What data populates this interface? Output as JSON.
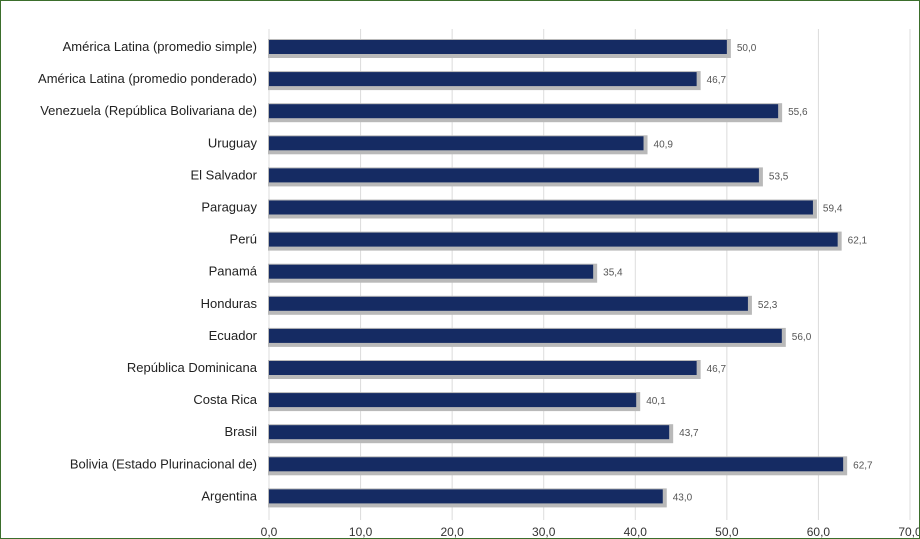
{
  "chart_data": {
    "type": "bar",
    "orientation": "horizontal",
    "categories": [
      "América Latina (promedio simple)",
      "América Latina (promedio ponderado)",
      "Venezuela (República Bolivariana de)",
      "Uruguay",
      "El Salvador",
      "Paraguay",
      "Perú",
      "Panamá",
      "Honduras",
      "Ecuador",
      "República Dominicana",
      "Costa Rica",
      "Brasil",
      "Bolivia (Estado Plurinacional de)",
      "Argentina"
    ],
    "values": [
      50.0,
      46.7,
      55.6,
      40.9,
      53.5,
      59.4,
      62.1,
      35.4,
      52.3,
      56.0,
      46.7,
      40.1,
      43.7,
      62.7,
      43.0
    ],
    "value_labels": [
      "50,0",
      "46,7",
      "55,6",
      "40,9",
      "53,5",
      "59,4",
      "62,1",
      "35,4",
      "52,3",
      "56,0",
      "46,7",
      "40,1",
      "43,7",
      "62,7",
      "43,0"
    ],
    "xlim": [
      0,
      70
    ],
    "x_ticks": [
      0,
      10,
      20,
      30,
      40,
      50,
      60,
      70
    ],
    "x_tick_labels": [
      "0,0",
      "10,0",
      "20,0",
      "30,0",
      "40,0",
      "50,0",
      "60,0",
      "70,0"
    ],
    "title": "",
    "xlabel": "",
    "ylabel": "",
    "grid": "vertical",
    "legend": "none",
    "colors": {
      "bar": "#152b63",
      "bar_shadow": "#b9b9b9",
      "grid": "#dcdcdc",
      "frame": "#3b6e2c"
    }
  }
}
